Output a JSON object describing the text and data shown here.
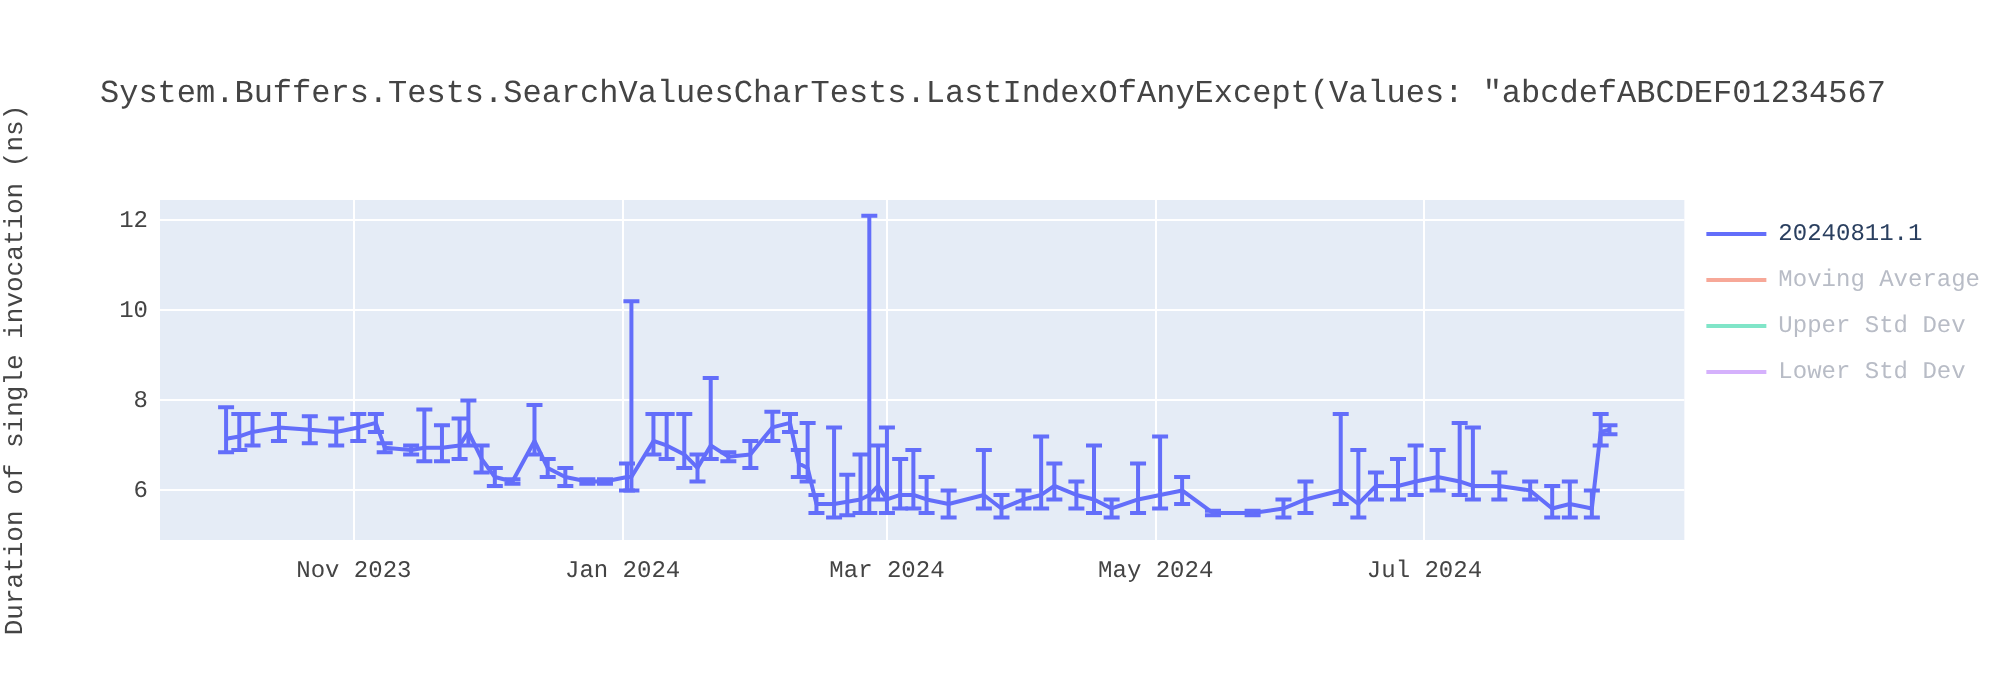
{
  "chart_data": {
    "type": "line",
    "title": "System.Buffers.Tests.SearchValuesCharTests.LastIndexOfAnyExcept(Values: \"abcdefABCDEF01234567",
    "ylabel": "Duration of single invocation (ns)",
    "x": [
      "2023-10-03",
      "2023-10-06",
      "2023-10-09",
      "2023-10-15",
      "2023-10-22",
      "2023-10-28",
      "2023-11-02",
      "2023-11-06",
      "2023-11-08",
      "2023-11-14",
      "2023-11-17",
      "2023-11-21",
      "2023-11-25",
      "2023-11-27",
      "2023-11-30",
      "2023-12-03",
      "2023-12-07",
      "2023-12-12",
      "2023-12-15",
      "2023-12-19",
      "2023-12-24",
      "2023-12-28",
      "2024-01-02",
      "2024-01-03",
      "2024-01-08",
      "2024-01-11",
      "2024-01-15",
      "2024-01-18",
      "2024-01-21",
      "2024-01-25",
      "2024-01-30",
      "2024-02-04",
      "2024-02-08",
      "2024-02-10",
      "2024-02-12",
      "2024-02-14",
      "2024-02-18",
      "2024-02-21",
      "2024-02-24",
      "2024-02-26",
      "2024-02-28",
      "2024-03-01",
      "2024-03-04",
      "2024-03-07",
      "2024-03-10",
      "2024-03-15",
      "2024-03-23",
      "2024-03-27",
      "2024-04-01",
      "2024-04-05",
      "2024-04-08",
      "2024-04-13",
      "2024-04-17",
      "2024-04-21",
      "2024-04-27",
      "2024-05-02",
      "2024-05-07",
      "2024-05-14",
      "2024-05-23",
      "2024-05-30",
      "2024-06-04",
      "2024-06-12",
      "2024-06-16",
      "2024-06-20",
      "2024-06-25",
      "2024-06-29",
      "2024-07-04",
      "2024-07-09",
      "2024-07-12",
      "2024-07-18",
      "2024-07-25",
      "2024-07-30",
      "2024-08-03",
      "2024-08-08",
      "2024-08-10",
      "2024-08-12"
    ],
    "series": [
      {
        "name": "20240811.1",
        "color": "#636efa",
        "values": [
          7.15,
          7.2,
          7.3,
          7.4,
          7.35,
          7.3,
          7.4,
          7.5,
          6.95,
          6.9,
          6.95,
          6.95,
          7.0,
          7.3,
          6.7,
          6.3,
          6.2,
          7.1,
          6.5,
          6.3,
          6.2,
          6.2,
          6.3,
          6.3,
          7.1,
          7.0,
          6.8,
          6.5,
          7.0,
          6.75,
          6.8,
          7.4,
          7.5,
          6.6,
          6.5,
          5.7,
          5.7,
          5.75,
          5.8,
          5.9,
          6.1,
          5.8,
          5.9,
          5.9,
          5.8,
          5.7,
          5.9,
          5.6,
          5.8,
          5.9,
          6.1,
          5.9,
          5.8,
          5.6,
          5.8,
          5.9,
          6.0,
          5.5,
          5.5,
          5.6,
          5.8,
          6.0,
          5.7,
          6.1,
          6.1,
          6.2,
          6.3,
          6.2,
          6.1,
          6.1,
          6.0,
          5.6,
          5.7,
          5.6,
          7.3,
          7.35
        ],
        "errors": [
          [
            6.85,
            7.85
          ],
          [
            6.9,
            7.7
          ],
          [
            7.0,
            7.7
          ],
          [
            7.1,
            7.7
          ],
          [
            7.05,
            7.65
          ],
          [
            7.0,
            7.6
          ],
          [
            7.1,
            7.7
          ],
          [
            7.3,
            7.7
          ],
          [
            6.85,
            7.05
          ],
          [
            6.8,
            7.0
          ],
          [
            6.65,
            7.8
          ],
          [
            6.65,
            7.45
          ],
          [
            6.7,
            7.6
          ],
          [
            7.0,
            8.0
          ],
          [
            6.4,
            7.0
          ],
          [
            6.1,
            6.5
          ],
          [
            6.15,
            6.25
          ],
          [
            6.8,
            7.9
          ],
          [
            6.3,
            6.7
          ],
          [
            6.1,
            6.5
          ],
          [
            6.15,
            6.25
          ],
          [
            6.15,
            6.25
          ],
          [
            6.0,
            6.6
          ],
          [
            6.0,
            10.2
          ],
          [
            6.8,
            7.7
          ],
          [
            6.7,
            7.7
          ],
          [
            6.5,
            7.7
          ],
          [
            6.2,
            6.8
          ],
          [
            6.7,
            8.5
          ],
          [
            6.65,
            6.85
          ],
          [
            6.5,
            7.1
          ],
          [
            7.1,
            7.75
          ],
          [
            7.3,
            7.7
          ],
          [
            6.3,
            6.9
          ],
          [
            6.2,
            7.5
          ],
          [
            5.5,
            5.9
          ],
          [
            5.4,
            7.4
          ],
          [
            5.45,
            6.35
          ],
          [
            5.5,
            6.8
          ],
          [
            5.5,
            12.1
          ],
          [
            5.8,
            7.0
          ],
          [
            5.5,
            7.4
          ],
          [
            5.6,
            6.7
          ],
          [
            5.6,
            6.9
          ],
          [
            5.5,
            6.3
          ],
          [
            5.4,
            6.0
          ],
          [
            5.6,
            6.9
          ],
          [
            5.4,
            5.9
          ],
          [
            5.6,
            6.0
          ],
          [
            5.6,
            7.2
          ],
          [
            5.8,
            6.6
          ],
          [
            5.6,
            6.2
          ],
          [
            5.5,
            7.0
          ],
          [
            5.4,
            5.8
          ],
          [
            5.5,
            6.6
          ],
          [
            5.6,
            7.2
          ],
          [
            5.7,
            6.3
          ],
          [
            5.45,
            5.55
          ],
          [
            5.45,
            5.55
          ],
          [
            5.4,
            5.8
          ],
          [
            5.5,
            6.2
          ],
          [
            5.7,
            7.7
          ],
          [
            5.4,
            6.9
          ],
          [
            5.8,
            6.4
          ],
          [
            5.8,
            6.7
          ],
          [
            5.9,
            7.0
          ],
          [
            6.0,
            6.9
          ],
          [
            5.9,
            7.5
          ],
          [
            5.8,
            7.4
          ],
          [
            5.8,
            6.4
          ],
          [
            5.8,
            6.2
          ],
          [
            5.4,
            6.1
          ],
          [
            5.4,
            6.2
          ],
          [
            5.4,
            6.0
          ],
          [
            7.0,
            7.7
          ],
          [
            7.25,
            7.45
          ]
        ]
      },
      {
        "name": "Moving Average",
        "color": "#f7a898",
        "values": [
          null,
          null,
          null,
          null,
          null,
          null,
          null,
          null,
          null,
          null,
          null,
          null,
          null,
          null,
          null,
          null,
          null,
          null,
          null,
          null,
          null,
          null,
          null,
          null,
          null,
          null,
          null,
          null,
          null,
          null,
          null,
          null,
          null,
          null,
          null,
          null,
          null,
          null,
          null,
          null,
          null,
          null,
          null,
          null,
          null,
          null,
          null,
          null,
          null,
          null,
          null,
          null,
          null,
          null,
          null,
          null,
          null,
          null,
          null,
          null,
          null,
          null,
          null,
          null,
          null,
          null,
          null,
          null,
          null,
          null,
          null,
          null,
          null,
          null,
          null,
          null
        ]
      },
      {
        "name": "Upper Std Dev",
        "color": "#80e5c8",
        "values": [
          null,
          null,
          null,
          null,
          null,
          null,
          null,
          null,
          null,
          null,
          null,
          null,
          null,
          null,
          null,
          null,
          null,
          null,
          null,
          null,
          null,
          null,
          null,
          null,
          null,
          null,
          null,
          null,
          null,
          null,
          null,
          null,
          null,
          null,
          null,
          null,
          null,
          null,
          null,
          null,
          null,
          null,
          null,
          null,
          null,
          null,
          null,
          null,
          null,
          null,
          null,
          null,
          null,
          null,
          null,
          null,
          null,
          null,
          null,
          null,
          null,
          null,
          null,
          null,
          null,
          null,
          null,
          null,
          null,
          null,
          null,
          null,
          null,
          null,
          null,
          null
        ]
      },
      {
        "name": "Lower Std Dev",
        "color": "#d5b1fc",
        "values": [
          null,
          null,
          null,
          null,
          null,
          null,
          null,
          null,
          null,
          null,
          null,
          null,
          null,
          null,
          null,
          null,
          null,
          null,
          null,
          null,
          null,
          null,
          null,
          null,
          null,
          null,
          null,
          null,
          null,
          null,
          null,
          null,
          null,
          null,
          null,
          null,
          null,
          null,
          null,
          null,
          null,
          null,
          null,
          null,
          null,
          null,
          null,
          null,
          null,
          null,
          null,
          null,
          null,
          null,
          null,
          null,
          null,
          null,
          null,
          null,
          null,
          null,
          null,
          null,
          null,
          null,
          null,
          null,
          null,
          null,
          null,
          null,
          null,
          null,
          null,
          null
        ]
      }
    ],
    "xlim": [
      "2023-09-18",
      "2024-08-29"
    ],
    "xticks": [
      {
        "value": "2023-11-01",
        "label": "Nov 2023"
      },
      {
        "value": "2024-01-01",
        "label": "Jan 2024"
      },
      {
        "value": "2024-03-01",
        "label": "Mar 2024"
      },
      {
        "value": "2024-05-01",
        "label": "May 2024"
      },
      {
        "value": "2024-07-01",
        "label": "Jul 2024"
      }
    ],
    "ylim": [
      4.9,
      12.45
    ],
    "yticks": [
      6,
      8,
      10,
      12
    ],
    "grid": true,
    "legend": "top right"
  }
}
